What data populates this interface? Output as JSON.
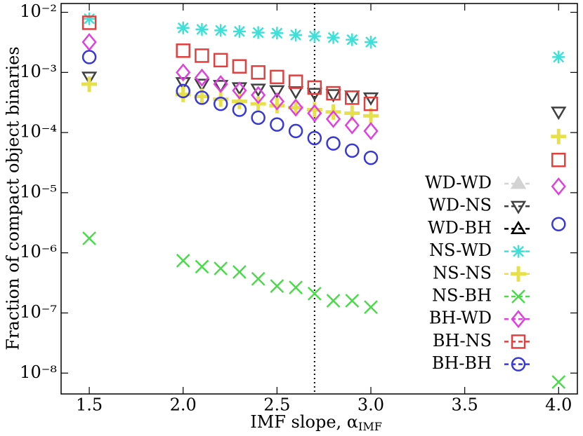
{
  "chart_data": {
    "type": "scatter",
    "ylabel": "Fraction of compact object binaries",
    "xlabel": "IMF slope, α",
    "xlabel_sub": "IMF",
    "xlim": [
      1.35,
      4.1
    ],
    "ylim": [
      4.5e-09,
      0.014
    ],
    "yscale": "log",
    "xticks": [
      1.5,
      {
        "value": 2,
        "label": "2.0"
      },
      2.5,
      {
        "value": 3,
        "label": "3.0"
      },
      3.5,
      {
        "value": 4,
        "label": "4.0"
      }
    ],
    "yticks": [
      {
        "value": 1e-08,
        "label": "10⁻⁸"
      },
      {
        "value": 1e-07,
        "label": "10⁻⁷"
      },
      {
        "value": 1e-06,
        "label": "10⁻⁶"
      },
      {
        "value": 1e-05,
        "label": "10⁻⁵"
      },
      {
        "value": 0.0001,
        "label": "10⁻⁴"
      },
      {
        "value": 0.001,
        "label": "10⁻³"
      },
      {
        "value": 0.01,
        "label": "10⁻²"
      }
    ],
    "vline": 2.7,
    "legend": "lower right",
    "series": [
      {
        "name": "WD-WD",
        "color": "#d3d3d3",
        "marker": "triangle-up-filled",
        "x": [],
        "values": []
      },
      {
        "name": "WD-NS",
        "color": "#404040",
        "marker": "triangle-down",
        "x": [
          1.5,
          2.0,
          2.1,
          2.2,
          2.3,
          2.4,
          2.5,
          2.6,
          2.7,
          2.8,
          2.9,
          3.0,
          4.0
        ],
        "values": [
          0.00084,
          0.00068,
          0.00064,
          0.00061,
          0.00056,
          0.00053,
          0.0005,
          0.00048,
          0.00045,
          0.00043,
          0.00041,
          0.00038,
          0.00022
        ]
      },
      {
        "name": "WD-BH",
        "color": "#000000",
        "marker": "triangle-up",
        "x": [],
        "values": []
      },
      {
        "name": "NS-WD",
        "color": "#40e0d8",
        "marker": "asterisk",
        "x": [
          1.5,
          2.0,
          2.1,
          2.2,
          2.3,
          2.4,
          2.5,
          2.6,
          2.7,
          2.8,
          2.9,
          3.0,
          4.0
        ],
        "values": [
          0.0078,
          0.0055,
          0.0052,
          0.005,
          0.0048,
          0.0046,
          0.0045,
          0.0042,
          0.004,
          0.0038,
          0.0035,
          0.0032,
          0.0018
        ]
      },
      {
        "name": "NS-NS",
        "color": "#e6e04a",
        "marker": "plus",
        "x": [
          1.5,
          2.0,
          2.1,
          2.2,
          2.3,
          2.4,
          2.5,
          2.6,
          2.7,
          2.8,
          2.9,
          3.0,
          4.0
        ],
        "values": [
          0.00064,
          0.00043,
          0.0004,
          0.00036,
          0.00033,
          0.0003,
          0.00028,
          0.00026,
          0.00024,
          0.00022,
          0.00021,
          0.00019,
          8.6e-05
        ]
      },
      {
        "name": "NS-BH",
        "color": "#4cd94c",
        "marker": "x",
        "x": [
          1.5,
          2.0,
          2.1,
          2.2,
          2.3,
          2.4,
          2.5,
          2.6,
          2.7,
          2.8,
          2.9,
          3.0,
          4.0
        ],
        "values": [
          1.74e-06,
          7.4e-07,
          5.9e-07,
          5.5e-07,
          4.8e-07,
          3.7e-07,
          2.8e-07,
          2.65e-07,
          2.1e-07,
          1.6e-07,
          1.6e-07,
          1.25e-07,
          7.1e-09
        ]
      },
      {
        "name": "BH-WD",
        "color": "#e040e0",
        "marker": "diamond",
        "x": [
          1.5,
          2.0,
          2.1,
          2.2,
          2.3,
          2.4,
          2.5,
          2.6,
          2.7,
          2.8,
          2.9,
          3.0,
          4.0
        ],
        "values": [
          0.0032,
          0.001,
          0.00082,
          0.00064,
          0.0005,
          0.00042,
          0.00033,
          0.00026,
          0.00021,
          0.000168,
          0.000132,
          0.000106,
          1.27e-05
        ]
      },
      {
        "name": "BH-NS",
        "color": "#e04040",
        "marker": "square",
        "x": [
          1.5,
          2.0,
          2.1,
          2.2,
          2.3,
          2.4,
          2.5,
          2.6,
          2.7,
          2.8,
          2.9,
          3.0,
          4.0
        ],
        "values": [
          0.0067,
          0.0023,
          0.0019,
          0.0016,
          0.00126,
          0.001,
          0.00084,
          0.0007,
          0.00056,
          0.00045,
          0.00038,
          0.0003,
          3.5e-05
        ]
      },
      {
        "name": "BH-BH",
        "color": "#3838d8",
        "marker": "circle",
        "x": [
          1.5,
          2.0,
          2.1,
          2.2,
          2.3,
          2.4,
          2.5,
          2.6,
          2.7,
          2.8,
          2.9,
          3.0,
          4.0
        ],
        "values": [
          0.0018,
          0.00049,
          0.00038,
          0.0003,
          0.00024,
          0.000177,
          0.000136,
          0.000106,
          8.1e-05,
          6.6e-05,
          5e-05,
          3.8e-05,
          3e-06
        ]
      }
    ]
  }
}
